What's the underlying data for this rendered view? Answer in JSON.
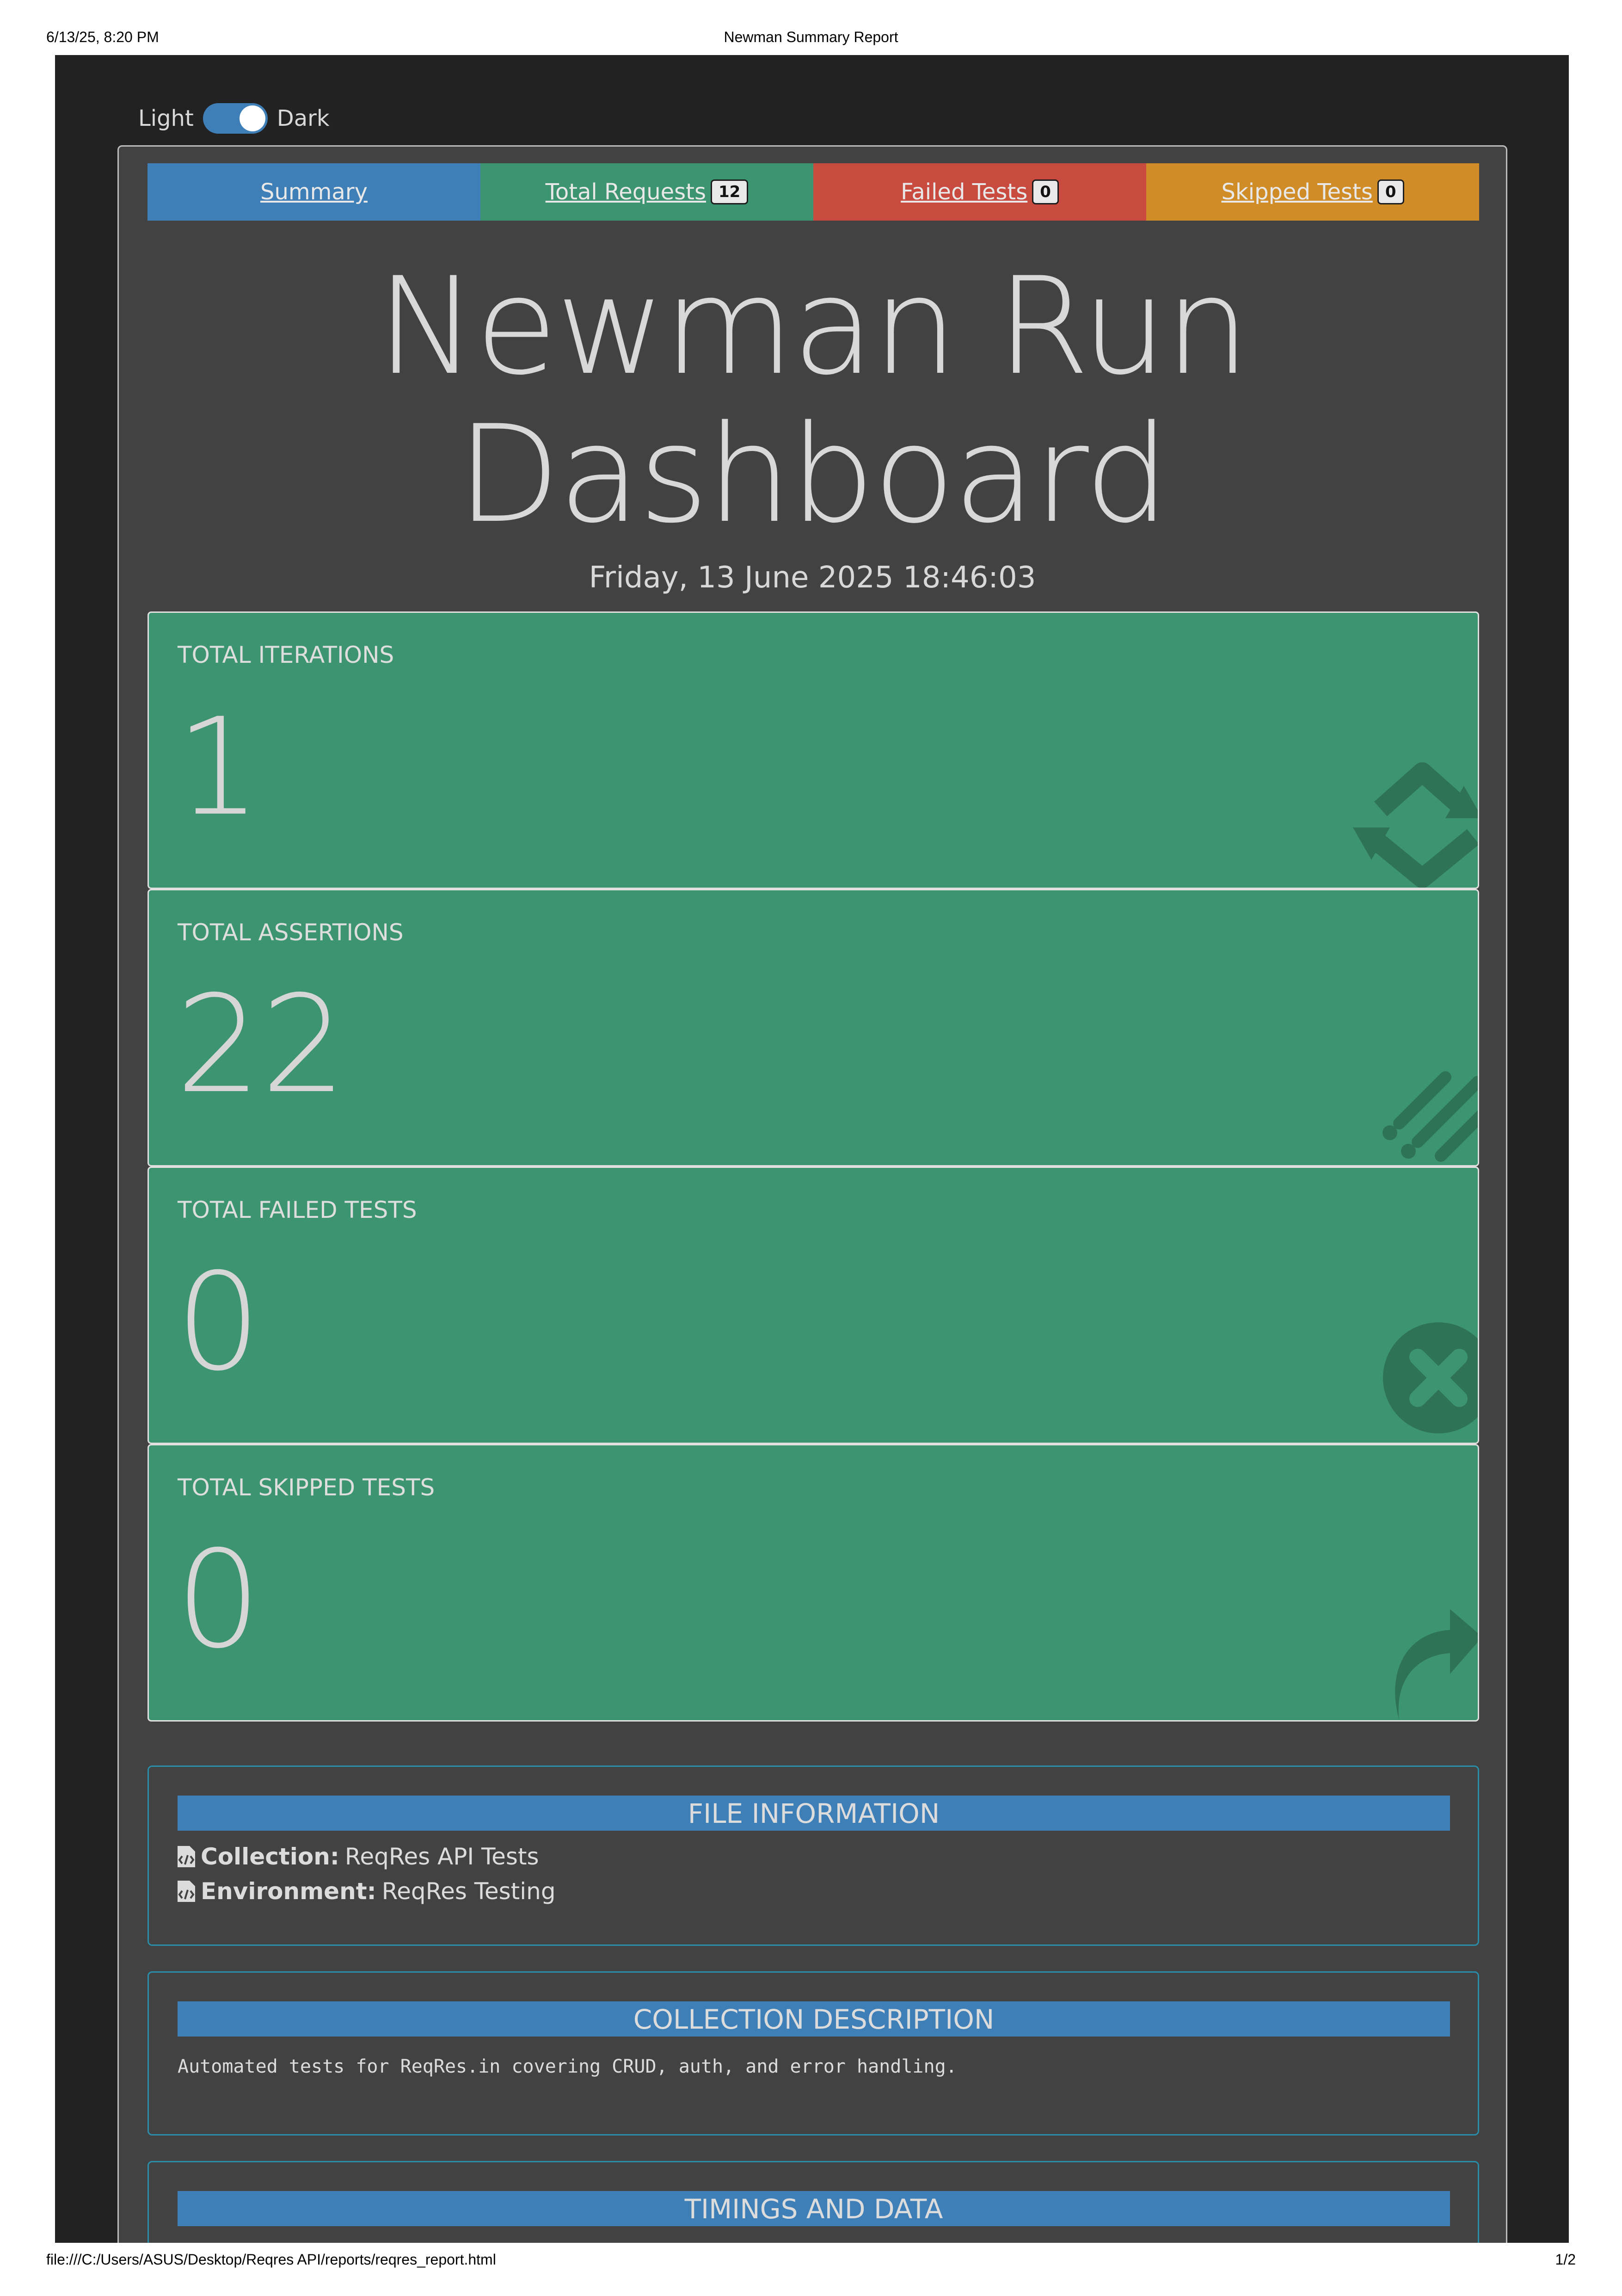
{
  "print": {
    "date": "6/13/25, 8:20 PM",
    "title": "Newman Summary Report",
    "url": "file:///C:/Users/ASUS/Desktop/Reqres API/reports/reqres_report.html",
    "page": "1/2"
  },
  "theme_toggle": {
    "light_label": "Light",
    "dark_label": "Dark"
  },
  "tabs": {
    "summary": "Summary",
    "requests": "Total Requests",
    "requests_count": "12",
    "failed": "Failed Tests",
    "failed_count": "0",
    "skipped": "Skipped Tests",
    "skipped_count": "0"
  },
  "dashboard": {
    "title_line1": "Newman Run",
    "title_line2": "Dashboard",
    "date": "Friday, 13 June 2025 18:46:03"
  },
  "stats": {
    "iterations": {
      "label": "Total Iterations",
      "value": "1",
      "icon": "sync-icon"
    },
    "assertions": {
      "label": "Total Assertions",
      "value": "22",
      "icon": "tasks-icon"
    },
    "failed": {
      "label": "Total Failed Tests",
      "value": "0",
      "icon": "times-circle-icon"
    },
    "skipped": {
      "label": "Total Skipped Tests",
      "value": "0",
      "icon": "share-arrow-icon"
    }
  },
  "file_info": {
    "heading": "FILE INFORMATION",
    "collection_label": "Collection:",
    "collection_value": "ReqRes API Tests",
    "environment_label": "Environment:",
    "environment_value": "ReqRes Testing"
  },
  "collection_description": {
    "heading": "COLLECTION DESCRIPTION",
    "text": "Automated tests for ReqRes.in covering CRUD, auth, and error handling."
  },
  "timings": {
    "heading": "TIMINGS AND DATA"
  },
  "colors": {
    "page_bg": "#222222",
    "card_bg": "#424242",
    "blue": "#3e7fb8",
    "green": "#3d9470",
    "red": "#c94a3f",
    "orange": "#d08d27"
  }
}
